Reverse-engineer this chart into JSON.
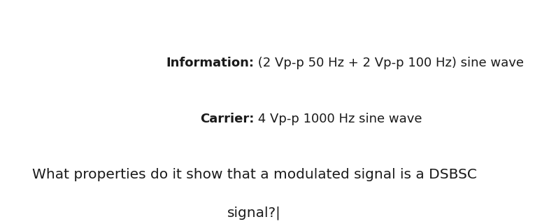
{
  "background_color": "#ffffff",
  "line1_bold": "Information:",
  "line1_normal": " (2 Vp-p 50 Hz + 2 Vp-p 100 Hz) sine wave",
  "line2_bold": "Carrier:",
  "line2_normal": " 4 Vp-p 1000 Hz sine wave",
  "line3": "What properties do it show that a modulated signal is a DSBSC",
  "line4": "signal?|",
  "text_color": "#1a1a1a",
  "font_size_line1": 13,
  "font_size_line2": 13,
  "font_size_line3": 14.5,
  "fig_width": 7.95,
  "fig_height": 3.2
}
